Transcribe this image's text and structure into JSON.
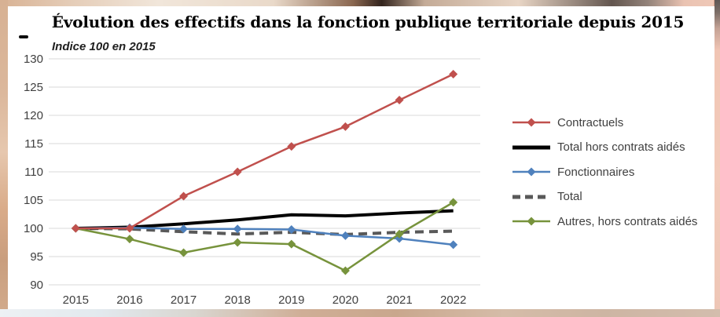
{
  "page": {
    "title": "Évolution des effectifs dans la fonction publique territoriale depuis 2015",
    "subtitle": "Indice 100 en 2015"
  },
  "colors": {
    "gridline": "#D9D9D9",
    "axis_label": "#404040",
    "legend_text": "#3F3F3F",
    "title_text": "#000000"
  },
  "chart_data": {
    "type": "line",
    "title": "Évolution des effectifs dans la fonction publique territoriale depuis 2015",
    "subtitle": "Indice 100 en 2015",
    "x": [
      "2015",
      "2016",
      "2017",
      "2018",
      "2019",
      "2020",
      "2021",
      "2022"
    ],
    "ylim": [
      90,
      130
    ],
    "yticks": [
      90,
      95,
      100,
      105,
      110,
      115,
      120,
      125,
      130
    ],
    "grid": true,
    "legend_position": "right",
    "series": [
      {
        "name": "Contractuels",
        "color": "#C0504D",
        "style": "solid",
        "width": 2.5,
        "marker": "diamond",
        "values": [
          100,
          100,
          105.7,
          110,
          114.5,
          118,
          122.7,
          127.3
        ]
      },
      {
        "name": "Total hors contrats aidés",
        "color": "#000000",
        "style": "solid",
        "width": 4,
        "marker": "none",
        "values": [
          100,
          100.2,
          100.8,
          101.5,
          102.4,
          102.2,
          102.7,
          103.1
        ]
      },
      {
        "name": "Fonctionnaires",
        "color": "#4F81BD",
        "style": "solid",
        "width": 2.5,
        "marker": "diamond",
        "values": [
          100,
          100.1,
          99.9,
          99.9,
          99.8,
          98.7,
          98.2,
          97.1
        ]
      },
      {
        "name": "Total",
        "color": "#595959",
        "style": "dashed",
        "width": 4,
        "marker": "none",
        "values": [
          100,
          99.9,
          99.4,
          99,
          99.3,
          98.9,
          99.3,
          99.5
        ]
      },
      {
        "name": "Autres, hors contrats aidés",
        "color": "#77933C",
        "style": "solid",
        "width": 2.5,
        "marker": "diamond",
        "values": [
          100,
          98.1,
          95.7,
          97.5,
          97.2,
          92.5,
          99,
          104.6
        ]
      }
    ]
  }
}
